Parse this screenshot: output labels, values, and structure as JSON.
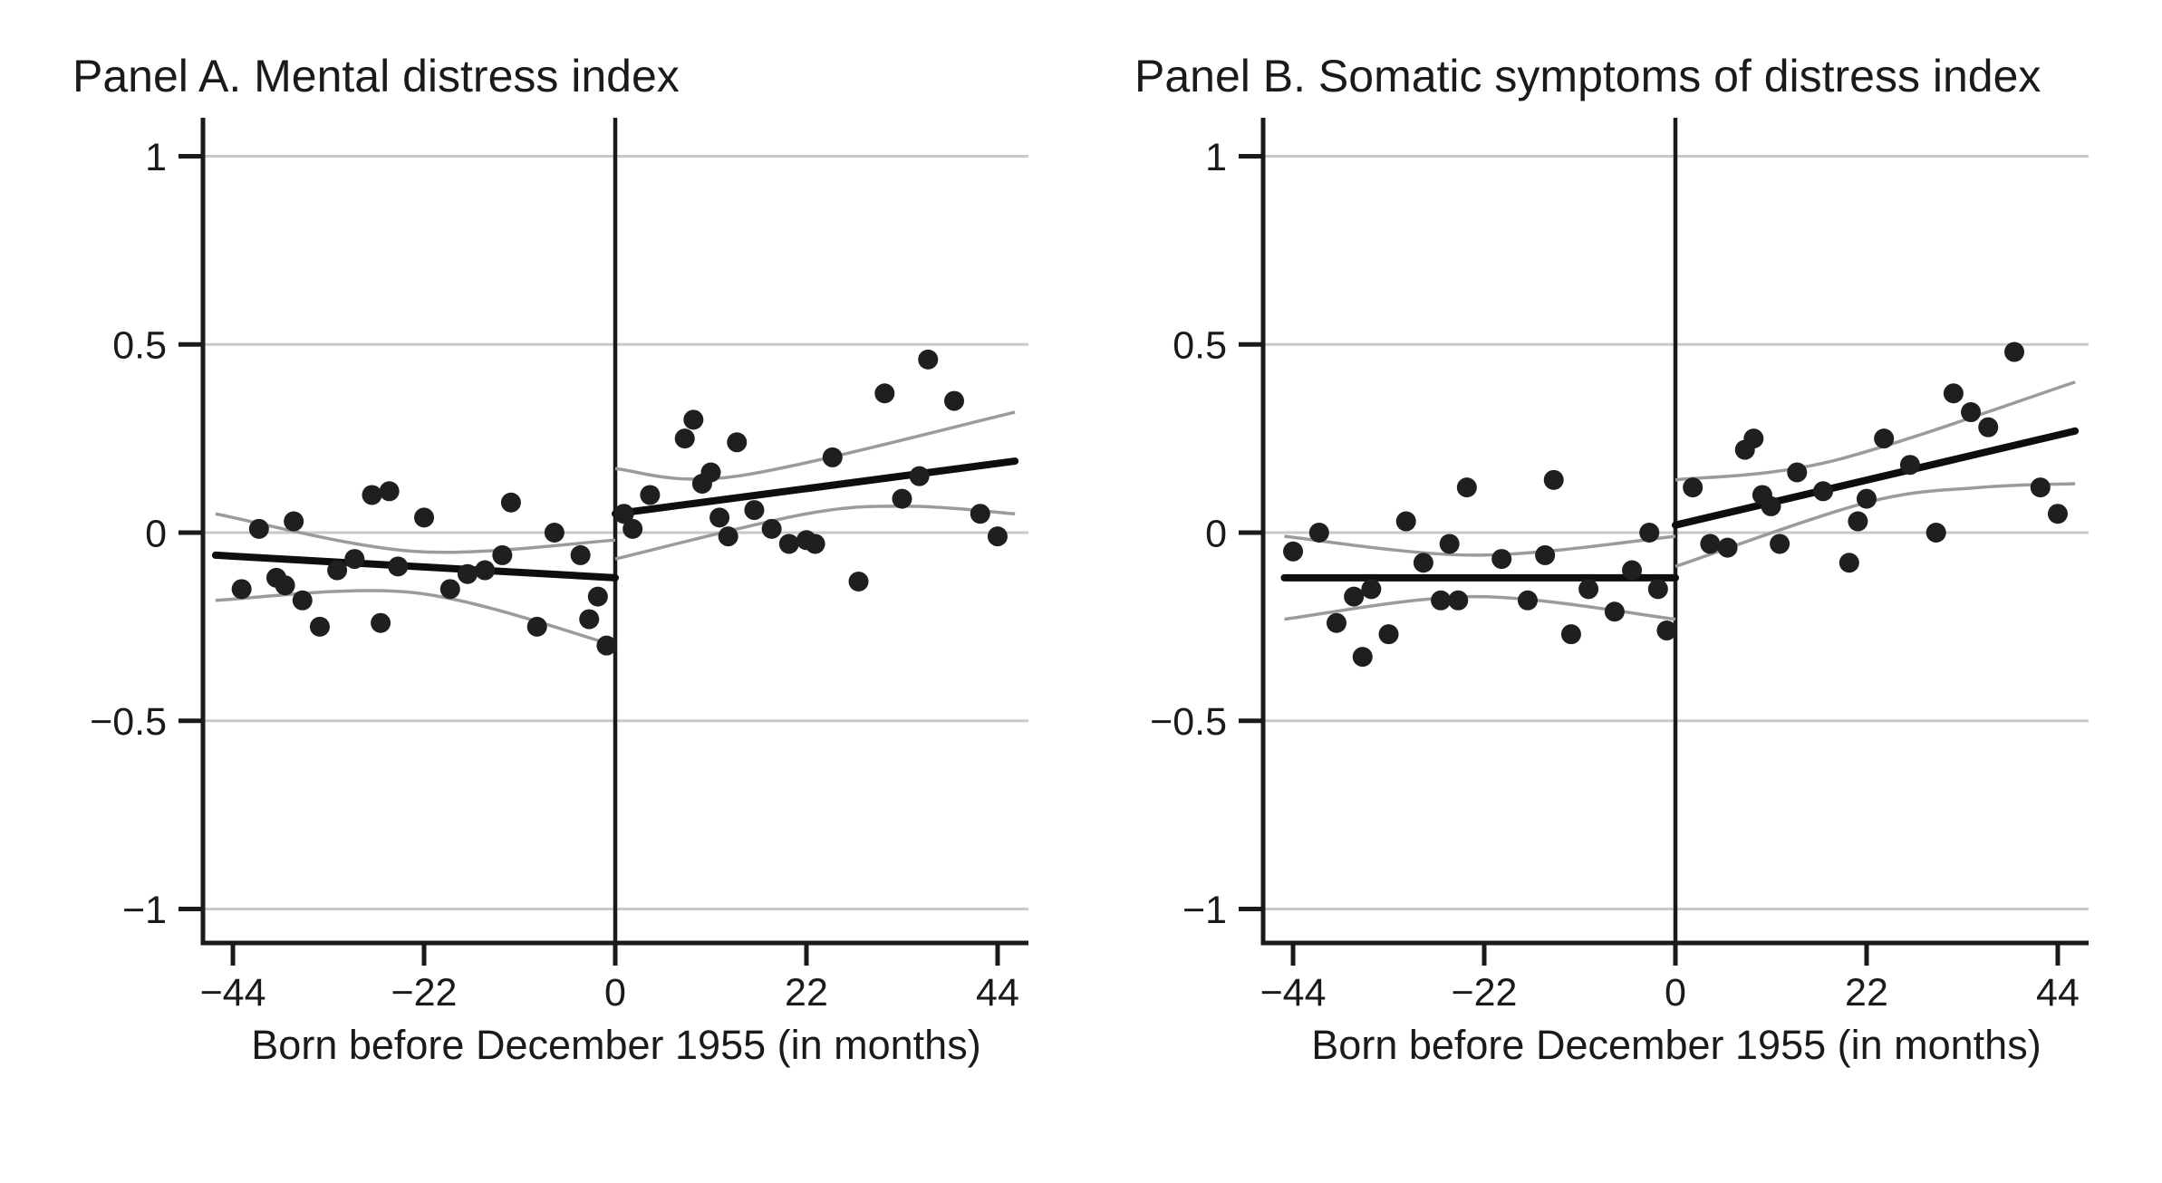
{
  "colors": {
    "background": "#ffffff",
    "text": "#1a1a1a",
    "axis": "#1a1a1a",
    "gridline": "#c9c9c9",
    "cutoff_line": "#1a1a1a",
    "fit_line": "#0e0e0e",
    "ci_line": "#9b9b9b",
    "dot": "#1f1f1f"
  },
  "chart_data": [
    {
      "type": "scatter",
      "panel_label": "Panel A",
      "title": "Panel A. Mental distress index",
      "xlabel": "Born before December 1955 (in months)",
      "ylabel": "",
      "xlim": [
        -47.5,
        47.5
      ],
      "ylim": [
        -1.09,
        1.09
      ],
      "grid": true,
      "cutoff_x": 0,
      "x_tick_values": [
        -44,
        -22,
        0,
        22,
        44
      ],
      "x_tick_labels": [
        "−44",
        "−22",
        "0",
        "22",
        "44"
      ],
      "y_tick_values": [
        1,
        0.5,
        0,
        -0.5,
        -1
      ],
      "y_tick_labels": [
        "1",
        "0.5",
        "0",
        "−0.5",
        "−1"
      ],
      "points_pre": [
        [
          -43,
          -0.15
        ],
        [
          -41,
          0.01
        ],
        [
          -39,
          -0.12
        ],
        [
          -38,
          -0.14
        ],
        [
          -37,
          0.03
        ],
        [
          -36,
          -0.18
        ],
        [
          -34,
          -0.25
        ],
        [
          -32,
          -0.1
        ],
        [
          -30,
          -0.07
        ],
        [
          -28,
          0.1
        ],
        [
          -27,
          -0.24
        ],
        [
          -26,
          0.11
        ],
        [
          -25,
          -0.09
        ],
        [
          -22,
          0.04
        ],
        [
          -19,
          -0.15
        ],
        [
          -17,
          -0.11
        ],
        [
          -15,
          -0.1
        ],
        [
          -13,
          -0.06
        ],
        [
          -12,
          0.08
        ],
        [
          -9,
          -0.25
        ],
        [
          -7,
          0.0
        ],
        [
          -4,
          -0.06
        ],
        [
          -3,
          -0.23
        ],
        [
          -2,
          -0.17
        ],
        [
          -1,
          -0.3
        ]
      ],
      "points_post": [
        [
          1,
          0.05
        ],
        [
          2,
          0.01
        ],
        [
          4,
          0.1
        ],
        [
          8,
          0.25
        ],
        [
          9,
          0.3
        ],
        [
          10,
          0.13
        ],
        [
          11,
          0.16
        ],
        [
          12,
          0.04
        ],
        [
          13,
          -0.01
        ],
        [
          14,
          0.24
        ],
        [
          16,
          0.06
        ],
        [
          18,
          0.01
        ],
        [
          20,
          -0.03
        ],
        [
          22,
          -0.02
        ],
        [
          23,
          -0.03
        ],
        [
          25,
          0.2
        ],
        [
          28,
          -0.13
        ],
        [
          31,
          0.37
        ],
        [
          33,
          0.09
        ],
        [
          35,
          0.15
        ],
        [
          36,
          0.46
        ],
        [
          39,
          0.35
        ],
        [
          42,
          0.05
        ],
        [
          44,
          -0.01
        ]
      ],
      "fit_pre": [
        [
          -46,
          -0.06
        ],
        [
          0,
          -0.12
        ]
      ],
      "fit_post": [
        [
          0,
          0.05
        ],
        [
          46,
          0.19
        ]
      ],
      "ci_pre_upper": [
        [
          -46,
          0.05
        ],
        [
          -23,
          -0.05
        ],
        [
          0,
          -0.02
        ]
      ],
      "ci_pre_lower": [
        [
          -46,
          -0.18
        ],
        [
          -23,
          -0.16
        ],
        [
          0,
          -0.3
        ]
      ],
      "ci_post_upper": [
        [
          0,
          0.17
        ],
        [
          14,
          0.15
        ],
        [
          46,
          0.32
        ]
      ],
      "ci_post_lower": [
        [
          0,
          -0.07
        ],
        [
          22,
          0.05
        ],
        [
          34,
          0.07
        ],
        [
          46,
          0.05
        ]
      ]
    },
    {
      "type": "scatter",
      "panel_label": "Panel B",
      "title": "Panel B. Somatic symptoms of distress index",
      "xlabel": "Born before December 1955 (in months)",
      "ylabel": "",
      "xlim": [
        -47.5,
        47.5
      ],
      "ylim": [
        -1.09,
        1.09
      ],
      "grid": true,
      "cutoff_x": 0,
      "x_tick_values": [
        -44,
        -22,
        0,
        22,
        44
      ],
      "x_tick_labels": [
        "−44",
        "−22",
        "0",
        "22",
        "44"
      ],
      "y_tick_values": [
        1,
        0.5,
        0,
        -0.5,
        -1
      ],
      "y_tick_labels": [
        "1",
        "0.5",
        "0",
        "−0.5",
        "−1"
      ],
      "points_pre": [
        [
          -44,
          -0.05
        ],
        [
          -41,
          0.0
        ],
        [
          -39,
          -0.24
        ],
        [
          -37,
          -0.17
        ],
        [
          -36,
          -0.33
        ],
        [
          -35,
          -0.15
        ],
        [
          -33,
          -0.27
        ],
        [
          -31,
          0.03
        ],
        [
          -29,
          -0.08
        ],
        [
          -27,
          -0.18
        ],
        [
          -26,
          -0.03
        ],
        [
          -25,
          -0.18
        ],
        [
          -24,
          0.12
        ],
        [
          -20,
          -0.07
        ],
        [
          -17,
          -0.18
        ],
        [
          -15,
          -0.06
        ],
        [
          -14,
          0.14
        ],
        [
          -12,
          -0.27
        ],
        [
          -10,
          -0.15
        ],
        [
          -7,
          -0.21
        ],
        [
          -5,
          -0.1
        ],
        [
          -3,
          0.0
        ],
        [
          -2,
          -0.15
        ],
        [
          -1,
          -0.26
        ]
      ],
      "points_post": [
        [
          2,
          0.12
        ],
        [
          4,
          -0.03
        ],
        [
          6,
          -0.04
        ],
        [
          8,
          0.22
        ],
        [
          9,
          0.25
        ],
        [
          10,
          0.1
        ],
        [
          11,
          0.07
        ],
        [
          12,
          -0.03
        ],
        [
          14,
          0.16
        ],
        [
          17,
          0.11
        ],
        [
          20,
          -0.08
        ],
        [
          21,
          0.03
        ],
        [
          22,
          0.09
        ],
        [
          24,
          0.25
        ],
        [
          27,
          0.18
        ],
        [
          30,
          0.0
        ],
        [
          32,
          0.37
        ],
        [
          34,
          0.32
        ],
        [
          36,
          0.28
        ],
        [
          39,
          0.48
        ],
        [
          42,
          0.12
        ],
        [
          44,
          0.05
        ]
      ],
      "fit_pre": [
        [
          -45,
          -0.12
        ],
        [
          0,
          -0.12
        ]
      ],
      "fit_post": [
        [
          0,
          0.02
        ],
        [
          46,
          0.27
        ]
      ],
      "ci_pre_upper": [
        [
          -45,
          -0.01
        ],
        [
          -23,
          -0.06
        ],
        [
          0,
          -0.01
        ]
      ],
      "ci_pre_lower": [
        [
          -45,
          -0.23
        ],
        [
          -23,
          -0.17
        ],
        [
          0,
          -0.23
        ]
      ],
      "ci_post_upper": [
        [
          0,
          0.14
        ],
        [
          18,
          0.19
        ],
        [
          46,
          0.4
        ]
      ],
      "ci_post_lower": [
        [
          0,
          -0.09
        ],
        [
          22,
          0.08
        ],
        [
          35,
          0.12
        ],
        [
          46,
          0.13
        ]
      ]
    }
  ]
}
